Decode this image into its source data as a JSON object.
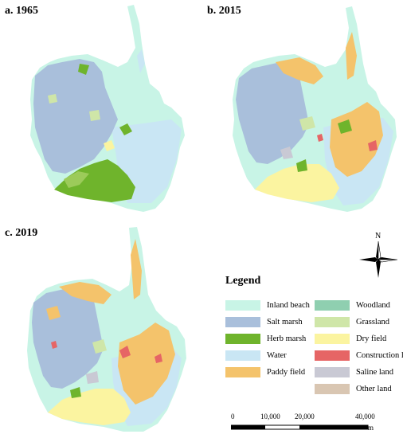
{
  "panels": [
    {
      "label": "a. 1965"
    },
    {
      "label": "b. 2015"
    },
    {
      "label": "c. 2019"
    }
  ],
  "legend": {
    "title": "Legend",
    "items": [
      {
        "label": "Inland beach",
        "color": "#c8f4e6"
      },
      {
        "label": "Salt marsh",
        "color": "#a9bfdb"
      },
      {
        "label": "Herb marsh",
        "color": "#6fb42c"
      },
      {
        "label": "Water",
        "color": "#c9e6f4"
      },
      {
        "label": "Paddy field",
        "color": "#f4c36b"
      },
      {
        "label": "Woodland",
        "color": "#8fcfb0"
      },
      {
        "label": "Grassland",
        "color": "#cfe6a8"
      },
      {
        "label": "Dry field",
        "color": "#fbf4a0"
      },
      {
        "label": "Construction land",
        "color": "#e66565"
      },
      {
        "label": "Saline land",
        "color": "#c9c9d4"
      },
      {
        "label": "Other land",
        "color": "#d9c6b2"
      }
    ]
  },
  "north_arrow": {
    "label": "N"
  },
  "scale_bar": {
    "ticks": [
      "0",
      "10,000",
      "20,000",
      "40,000"
    ],
    "unit": "m"
  }
}
